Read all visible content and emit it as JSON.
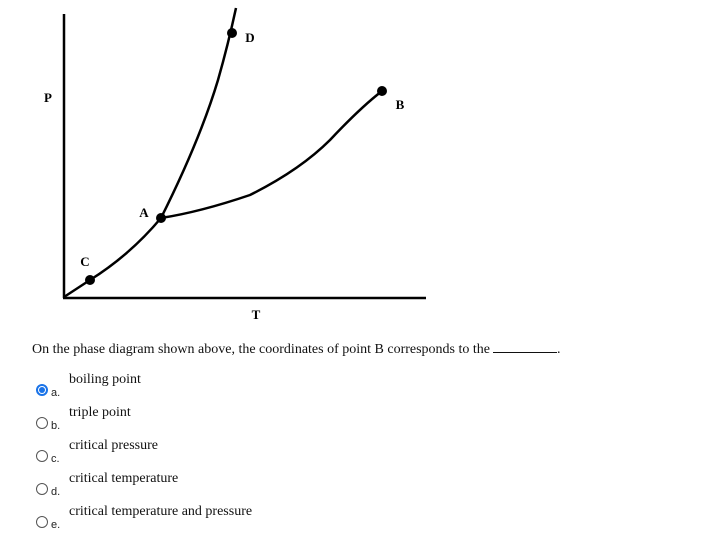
{
  "diagram": {
    "axis_labels": {
      "y": "P",
      "x": "T"
    },
    "points": {
      "a": "A",
      "b": "B",
      "c": "C",
      "d": "D"
    }
  },
  "question": {
    "text": "On the phase diagram shown above, the coordinates of point B corresponds to the",
    "suffix": "."
  },
  "options": [
    {
      "letter": "a.",
      "text": "boiling point"
    },
    {
      "letter": "b.",
      "text": "triple point"
    },
    {
      "letter": "c.",
      "text": "critical pressure"
    },
    {
      "letter": "d.",
      "text": "critical temperature"
    },
    {
      "letter": "e.",
      "text": "critical temperature and pressure"
    }
  ],
  "selected": 0
}
